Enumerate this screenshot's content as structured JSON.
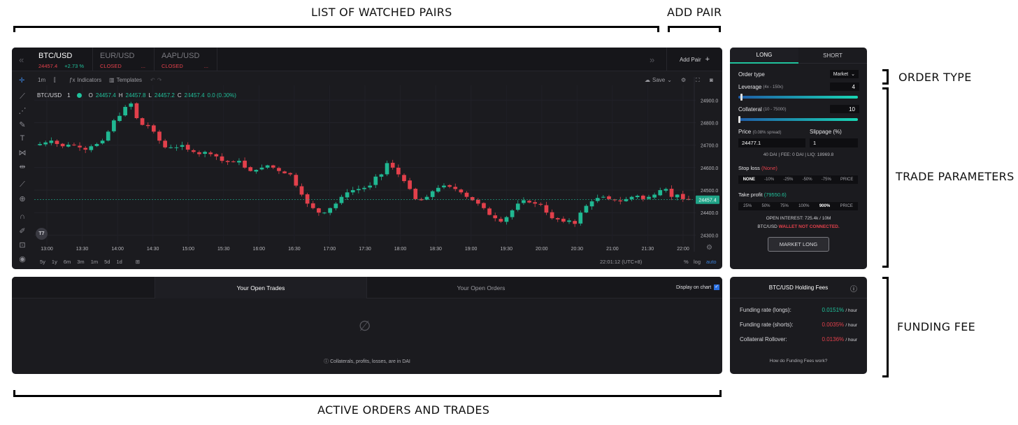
{
  "annotations": {
    "watched_pairs": "LIST OF WATCHED PAIRS",
    "add_pair": "ADD PAIR",
    "order_type": "ORDER TYPE",
    "trade_parameters": "TRADE PARAMETERS",
    "funding_fee": "FUNDING FEE",
    "active_orders": "ACTIVE ORDERS AND TRADES"
  },
  "pairs": [
    {
      "name": "BTC/USD",
      "price": "24457.4",
      "change": "+2.73 %"
    },
    {
      "name": "EUR/USD",
      "status": "CLOSED",
      "extra": "..."
    },
    {
      "name": "AAPL/USD",
      "status": "CLOSED",
      "extra": "..."
    }
  ],
  "add_pair_label": "Add Pair",
  "toolbar": {
    "interval": "1m",
    "indicators": "Indicators",
    "templates": "Templates",
    "save": "Save"
  },
  "legend": {
    "symbol": "BTC/USD",
    "interval": "1",
    "o_label": "O",
    "o": "24457.4",
    "h_label": "H",
    "h": "24457.8",
    "l_label": "L",
    "l": "24457.2",
    "c_label": "C",
    "c": "24457.4",
    "change": "0.0 (0.00%)"
  },
  "bottom_bar": {
    "ranges": [
      "5y",
      "1y",
      "6m",
      "3m",
      "1m",
      "5d",
      "1d"
    ],
    "clock": "22:01:12 (UTC+8)",
    "pct": "%",
    "log": "log",
    "auto": "auto"
  },
  "chart_data": {
    "type": "candlestick",
    "symbol": "BTC/USD",
    "x_ticks": [
      "13:00",
      "13:30",
      "14:00",
      "14:30",
      "15:00",
      "15:30",
      "16:00",
      "16:30",
      "17:00",
      "17:30",
      "18:00",
      "18:30",
      "19:00",
      "19:30",
      "20:00",
      "20:30",
      "21:00",
      "21:30",
      "22:00"
    ],
    "y_ticks": [
      "24900.0",
      "24800.0",
      "24700.0",
      "24600.0",
      "24500.0",
      "24400.0",
      "24300.0"
    ],
    "ylim": [
      24270,
      24935
    ],
    "last_price": "24457.4",
    "series_close": [
      24705,
      24712,
      24720,
      24705,
      24695,
      24702,
      24700,
      24690,
      24680,
      24695,
      24705,
      24720,
      24760,
      24810,
      24830,
      24870,
      24885,
      24820,
      24790,
      24785,
      24760,
      24720,
      24690,
      24690,
      24690,
      24700,
      24680,
      24670,
      24660,
      24670,
      24660,
      24650,
      24630,
      24625,
      24625,
      24630,
      24600,
      24585,
      24590,
      24600,
      24610,
      24600,
      24585,
      24575,
      24570,
      24520,
      24480,
      24440,
      24420,
      24400,
      24400,
      24420,
      24440,
      24470,
      24490,
      24500,
      24505,
      24510,
      24520,
      24560,
      24570,
      24620,
      24600,
      24570,
      24540,
      24505,
      24460,
      24455,
      24470,
      24495,
      24510,
      24520,
      24515,
      24505,
      24490,
      24470,
      24455,
      24440,
      24420,
      24390,
      24375,
      24360,
      24380,
      24410,
      24440,
      24455,
      24445,
      24440,
      24435,
      24400,
      24375,
      24370,
      24360,
      24365,
      24350,
      24400,
      24430,
      24450,
      24465,
      24470,
      24460,
      24455,
      24450,
      24460,
      24470,
      24475,
      24460,
      24470,
      24480,
      24500,
      24505,
      24470,
      24480,
      24460,
      24457
    ]
  },
  "trade": {
    "tab_long": "LONG",
    "tab_short": "SHORT",
    "order_type_label": "Order type",
    "order_type_value": "Market",
    "leverage_label": "Leverage",
    "leverage_range": "(4x - 150x)",
    "leverage_value": "4",
    "leverage_fill": 0.02,
    "collateral_label": "Collateral",
    "collateral_range": "(10 - 75000)",
    "collateral_value": "10",
    "collateral_fill": 0.0,
    "price_label": "Price",
    "price_sub": "(0.08% spread)",
    "slippage_label": "Slippage (%)",
    "price_value": "24477.1",
    "slippage_value": "1",
    "summary": "40 DAI | FEE: 0 DAI | LIQ: 18969.8",
    "stop_loss_label": "Stop loss",
    "stop_loss_value": "(None)",
    "stop_loss_opts": [
      "NONE",
      "-10%",
      "-25%",
      "-50%",
      "-75%",
      "PRICE"
    ],
    "take_profit_label": "Take profit",
    "take_profit_value": "(79550.6)",
    "take_profit_opts": [
      "25%",
      "50%",
      "75%",
      "100%",
      "900%",
      "PRICE"
    ],
    "open_interest": "OPEN INTEREST: 725.4k / 10M",
    "pair": "BTC/USD",
    "wallet_status": "WALLET NOT CONNECTED.",
    "submit": "MARKET LONG"
  },
  "orders": {
    "tab_trades": "Your Open Trades",
    "tab_orders": "Your Open Orders",
    "display_label": "Display on chart",
    "note": "Collaterals, profits, losses, are in DAI"
  },
  "funding": {
    "title": "BTC/USD Holding Fees",
    "rows": [
      {
        "label": "Funding rate (longs):",
        "value": "0.0151%",
        "unit": "/ hour"
      },
      {
        "label": "Funding rate (shorts):",
        "value": "0.0035%",
        "unit": "/ hour"
      },
      {
        "label": "Collateral Rollover:",
        "value": "0.0136%",
        "unit": "/ hour"
      }
    ],
    "help": "How do Funding Fees work?"
  }
}
